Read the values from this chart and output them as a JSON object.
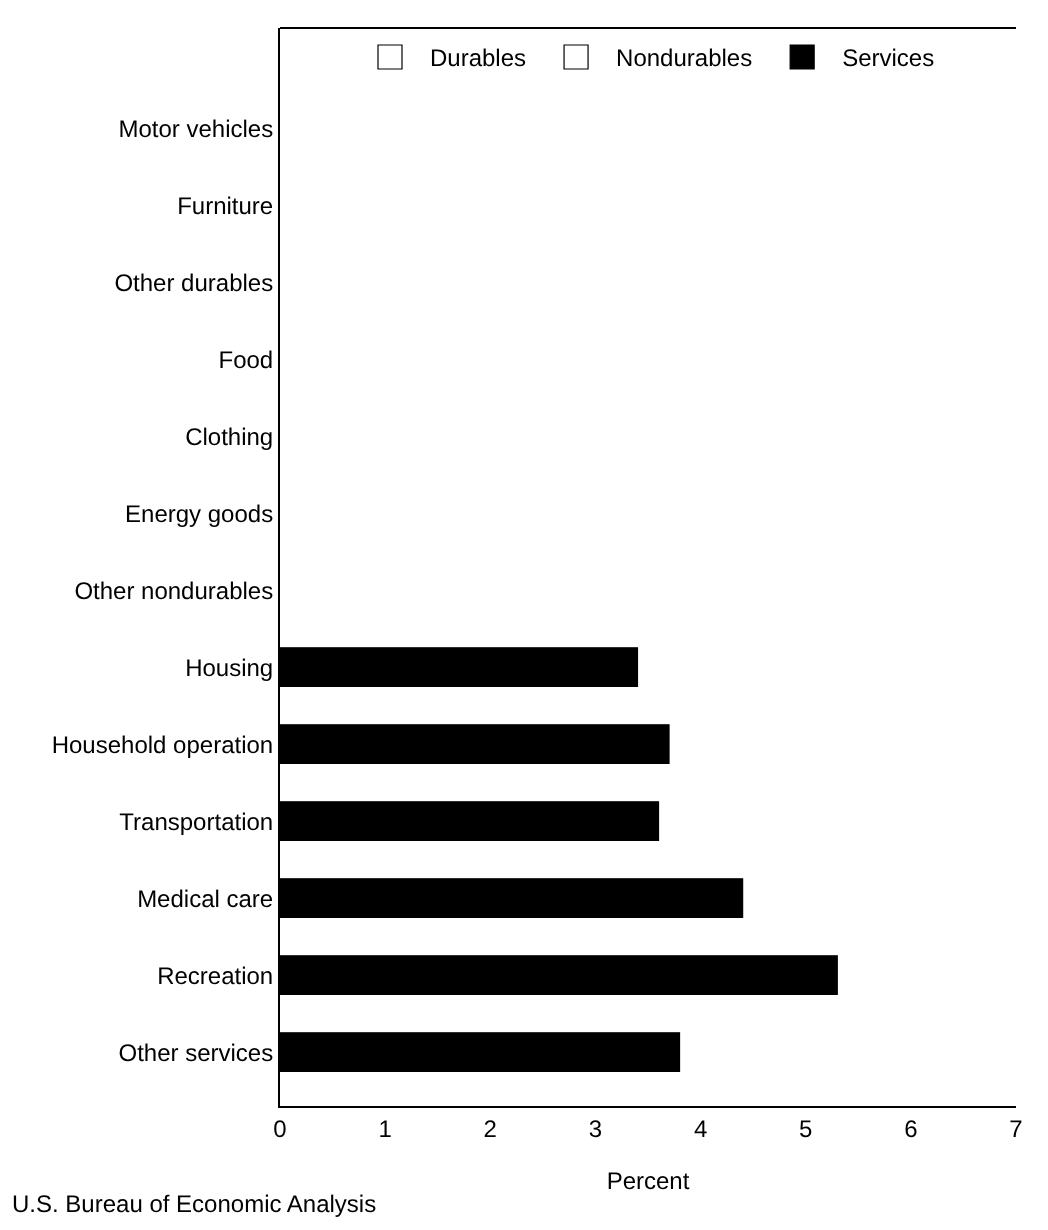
{
  "chart_data": {
    "type": "bar",
    "orientation": "horizontal",
    "xlabel": "Percent",
    "categories": [
      "Motor vehicles",
      "Furniture",
      "Other durables",
      "Food",
      "Clothing",
      "Energy goods",
      "Other nondurables",
      "Housing",
      "Household operation",
      "Transportation",
      "Medical care",
      "Recreation",
      "Other services"
    ],
    "series": [
      {
        "name": "Durables",
        "color": "#ffffff",
        "values": [
          null,
          null,
          null,
          null,
          null,
          null,
          null,
          null,
          null,
          null,
          null,
          null,
          null
        ]
      },
      {
        "name": "Nondurables",
        "color": "#ffffff",
        "values": [
          null,
          null,
          null,
          null,
          null,
          null,
          null,
          null,
          null,
          null,
          null,
          null,
          null
        ]
      },
      {
        "name": "Services",
        "color": "#000000",
        "values": [
          null,
          null,
          null,
          null,
          null,
          null,
          null,
          3.4,
          3.7,
          3.6,
          4.4,
          5.3,
          3.8
        ]
      }
    ],
    "xlim": [
      0,
      7
    ],
    "xticks": [
      0,
      1,
      2,
      3,
      4,
      5,
      6,
      7
    ],
    "legend": "top",
    "annotations": [
      "U.S. Bureau of Economic Analysis"
    ]
  }
}
